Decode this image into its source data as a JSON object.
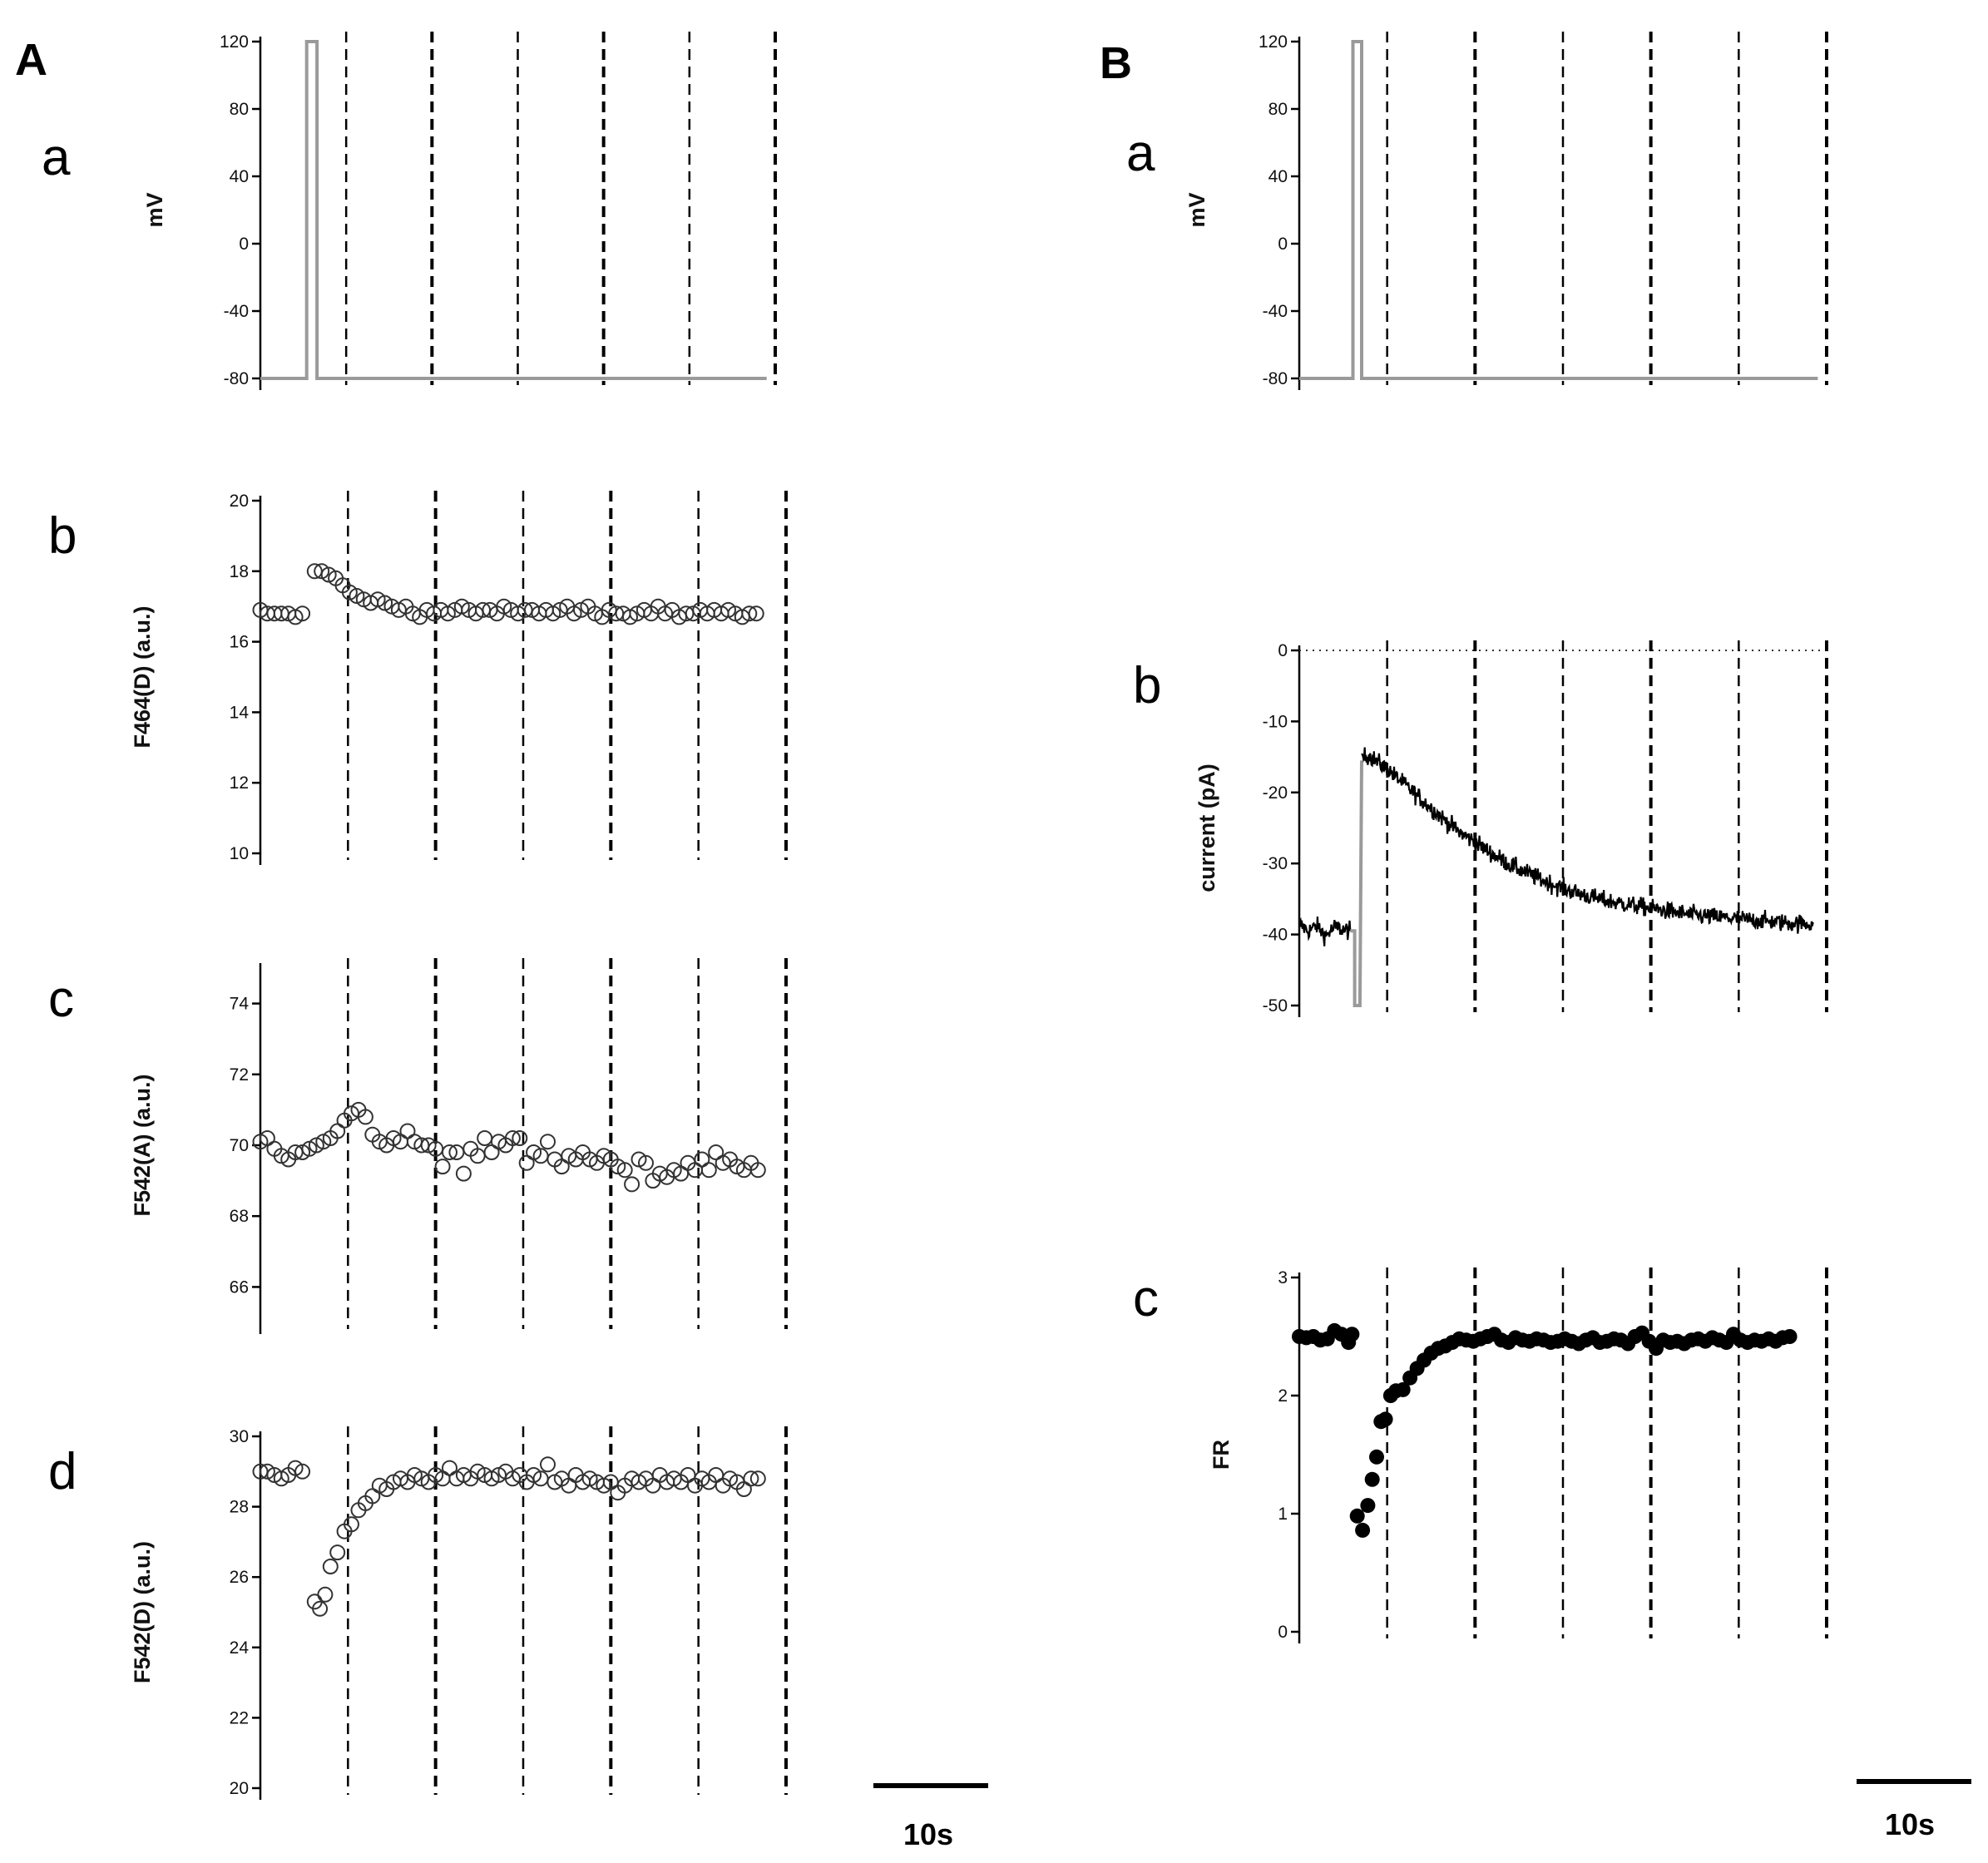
{
  "figure": {
    "panel_A": "A",
    "panel_B": "B",
    "scale_bar_label": "10s"
  },
  "chart_data": [
    {
      "id": "Aa",
      "letter": "a",
      "type": "line",
      "title": "",
      "xlabel": "",
      "ylabel": "mV",
      "xlim": [
        0,
        60
      ],
      "ylim": [
        -80,
        120
      ],
      "yticks": [
        "120",
        "80",
        "40",
        "0",
        "-40",
        "-80"
      ],
      "ytick_values": [
        120,
        80,
        40,
        0,
        -40,
        -80
      ],
      "vlines": [
        10,
        20,
        30,
        40,
        50,
        60
      ],
      "series": [
        {
          "style": "gray-line",
          "x": [
            0,
            5.4,
            5.4,
            6.6,
            6.6,
            59
          ],
          "y": [
            -80,
            -80,
            120,
            120,
            -80,
            -80
          ]
        }
      ]
    },
    {
      "id": "Ab",
      "letter": "b",
      "type": "scatter",
      "title": "",
      "xlabel": "",
      "ylabel": "F464(D) (a.u.)",
      "xlim": [
        0,
        60
      ],
      "ylim": [
        10,
        20
      ],
      "yticks": [
        "20",
        "18",
        "16",
        "14",
        "12",
        "10"
      ],
      "ytick_values": [
        20,
        18,
        16,
        14,
        12,
        10
      ],
      "vlines": [
        10,
        20,
        30,
        40,
        50,
        60
      ],
      "series": [
        {
          "style": "open-circle",
          "x": [
            0.0,
            0.8,
            1.6,
            2.4,
            3.2,
            4.0,
            4.8,
            6.2,
            7.0,
            7.8,
            8.6,
            9.4,
            10.2,
            11.0,
            11.8,
            12.6,
            13.4,
            14.2,
            15.0,
            15.8,
            16.6,
            17.4,
            18.2,
            19.0,
            19.8,
            20.6,
            21.4,
            22.2,
            23.0,
            23.8,
            24.6,
            25.4,
            26.2,
            27.0,
            27.8,
            28.6,
            29.4,
            30.2,
            31.0,
            31.8,
            32.6,
            33.4,
            34.2,
            35.0,
            35.8,
            36.6,
            37.4,
            38.2,
            39.0,
            39.8,
            40.6,
            41.4,
            42.2,
            43.0,
            43.8,
            44.6,
            45.4,
            46.2,
            47.0,
            47.8,
            48.6,
            49.4,
            50.2,
            51.0,
            51.8,
            52.6,
            53.4,
            54.2,
            55.0,
            55.8,
            56.6
          ],
          "y": [
            16.9,
            16.8,
            16.8,
            16.8,
            16.8,
            16.7,
            16.8,
            18.0,
            18.0,
            17.9,
            17.8,
            17.6,
            17.4,
            17.3,
            17.2,
            17.1,
            17.2,
            17.1,
            17.0,
            16.9,
            17.0,
            16.8,
            16.7,
            16.9,
            16.8,
            16.9,
            16.8,
            16.9,
            17.0,
            16.9,
            16.8,
            16.9,
            16.9,
            16.8,
            17.0,
            16.9,
            16.8,
            16.9,
            16.9,
            16.8,
            16.9,
            16.8,
            16.9,
            17.0,
            16.8,
            16.9,
            17.0,
            16.8,
            16.7,
            16.9,
            16.8,
            16.8,
            16.7,
            16.8,
            16.9,
            16.8,
            17.0,
            16.8,
            16.9,
            16.7,
            16.8,
            16.8,
            16.9,
            16.8,
            16.9,
            16.8,
            16.9,
            16.8,
            16.7,
            16.8,
            16.8
          ]
        }
      ]
    },
    {
      "id": "Ac",
      "letter": "c",
      "type": "scatter",
      "title": "",
      "xlabel": "",
      "ylabel": "F542(A)  (a.u.)",
      "xlim": [
        0,
        60
      ],
      "ylim": [
        65,
        75
      ],
      "yticks": [
        "74",
        "72",
        "70",
        "68",
        "66"
      ],
      "ytick_values": [
        74,
        72,
        70,
        68,
        66
      ],
      "vlines": [
        10,
        20,
        30,
        40,
        50,
        60
      ],
      "series": [
        {
          "style": "open-circle",
          "x": [
            0.0,
            0.8,
            1.6,
            2.4,
            3.2,
            4.0,
            4.8,
            5.6,
            6.4,
            7.2,
            8.0,
            8.8,
            9.6,
            10.4,
            11.2,
            12.0,
            12.8,
            13.6,
            14.4,
            15.2,
            16.0,
            16.8,
            17.6,
            18.4,
            19.2,
            20.0,
            20.8,
            21.6,
            22.4,
            23.2,
            24.0,
            24.8,
            25.6,
            26.4,
            27.2,
            28.0,
            28.8,
            29.6,
            30.4,
            31.2,
            32.0,
            32.8,
            33.6,
            34.4,
            35.2,
            36.0,
            36.8,
            37.6,
            38.4,
            39.2,
            40.0,
            40.8,
            41.6,
            42.4,
            43.2,
            44.0,
            44.8,
            45.6,
            46.4,
            47.2,
            48.0,
            48.8,
            49.6,
            50.4,
            51.2,
            52.0,
            52.8,
            53.6,
            54.4,
            55.2,
            56.0,
            56.8
          ],
          "y": [
            70.1,
            70.2,
            69.9,
            69.7,
            69.6,
            69.8,
            69.8,
            69.9,
            70.0,
            70.1,
            70.2,
            70.4,
            70.7,
            70.9,
            71.0,
            70.8,
            70.3,
            70.1,
            70.0,
            70.2,
            70.1,
            70.4,
            70.1,
            70.0,
            70.0,
            69.9,
            69.4,
            69.8,
            69.8,
            69.2,
            69.9,
            69.7,
            70.2,
            69.8,
            70.1,
            70.0,
            70.2,
            70.2,
            69.5,
            69.8,
            69.7,
            70.1,
            69.6,
            69.4,
            69.7,
            69.6,
            69.8,
            69.6,
            69.5,
            69.7,
            69.6,
            69.4,
            69.3,
            68.9,
            69.6,
            69.5,
            69.0,
            69.2,
            69.1,
            69.3,
            69.2,
            69.5,
            69.3,
            69.6,
            69.3,
            69.8,
            69.5,
            69.6,
            69.4,
            69.3,
            69.5,
            69.3
          ]
        }
      ]
    },
    {
      "id": "Ad",
      "letter": "d",
      "type": "scatter",
      "title": "",
      "xlabel": "",
      "ylabel": "F542(D)  (a.u.)",
      "xlim": [
        0,
        60
      ],
      "ylim": [
        20,
        30
      ],
      "yticks": [
        "30",
        "28",
        "26",
        "24",
        "22",
        "20"
      ],
      "ytick_values": [
        30,
        28,
        26,
        24,
        22,
        20
      ],
      "vlines": [
        10,
        20,
        30,
        40,
        50,
        60
      ],
      "series": [
        {
          "style": "open-circle",
          "x": [
            0.0,
            0.8,
            1.6,
            2.4,
            3.2,
            4.0,
            4.8,
            6.2,
            6.8,
            7.4,
            8.0,
            8.8,
            9.6,
            10.4,
            11.2,
            12.0,
            12.8,
            13.6,
            14.4,
            15.2,
            16.0,
            16.8,
            17.6,
            18.4,
            19.2,
            20.0,
            20.8,
            21.6,
            22.4,
            23.2,
            24.0,
            24.8,
            25.6,
            26.4,
            27.2,
            28.0,
            28.8,
            29.6,
            30.4,
            31.2,
            32.0,
            32.8,
            33.6,
            34.4,
            35.2,
            36.0,
            36.8,
            37.6,
            38.4,
            39.2,
            40.0,
            40.8,
            41.6,
            42.4,
            43.2,
            44.0,
            44.8,
            45.6,
            46.4,
            47.2,
            48.0,
            48.8,
            49.6,
            50.4,
            51.2,
            52.0,
            52.8,
            53.6,
            54.4,
            55.2,
            56.0,
            56.8
          ],
          "y": [
            29.0,
            29.0,
            28.9,
            28.8,
            28.9,
            29.1,
            29.0,
            25.3,
            25.1,
            25.5,
            26.3,
            26.7,
            27.3,
            27.5,
            27.9,
            28.1,
            28.3,
            28.6,
            28.5,
            28.7,
            28.8,
            28.7,
            28.9,
            28.8,
            28.7,
            28.9,
            28.8,
            29.1,
            28.8,
            28.9,
            28.8,
            29.0,
            28.9,
            28.8,
            28.9,
            29.0,
            28.8,
            28.9,
            28.7,
            28.9,
            28.8,
            29.2,
            28.7,
            28.8,
            28.6,
            28.9,
            28.7,
            28.8,
            28.7,
            28.6,
            28.7,
            28.4,
            28.6,
            28.8,
            28.7,
            28.8,
            28.6,
            28.9,
            28.7,
            28.8,
            28.7,
            28.9,
            28.6,
            28.8,
            28.7,
            28.9,
            28.6,
            28.8,
            28.7,
            28.5,
            28.8,
            28.8
          ]
        }
      ]
    },
    {
      "id": "Ba",
      "letter": "a",
      "type": "line",
      "title": "",
      "xlabel": "",
      "ylabel": "mV",
      "xlim": [
        0,
        60
      ],
      "ylim": [
        -80,
        120
      ],
      "yticks": [
        "120",
        "80",
        "40",
        "0",
        "-40",
        "-80"
      ],
      "ytick_values": [
        120,
        80,
        40,
        0,
        -40,
        -80
      ],
      "vlines": [
        10,
        20,
        30,
        40,
        50,
        60
      ],
      "series": [
        {
          "style": "gray-line",
          "x": [
            0,
            6.1,
            6.1,
            7.1,
            7.1,
            59
          ],
          "y": [
            -80,
            -80,
            120,
            120,
            -80,
            -80
          ]
        }
      ]
    },
    {
      "id": "Bb",
      "letter": "b",
      "type": "line",
      "title": "",
      "xlabel": "",
      "ylabel": "current (pA)",
      "xlim": [
        0,
        60
      ],
      "ylim": [
        -50,
        0
      ],
      "yticks": [
        "0",
        "-10",
        "-20",
        "-30",
        "-40",
        "-50"
      ],
      "ytick_values": [
        0,
        -10,
        -20,
        -30,
        -40,
        -50
      ],
      "vlines": [
        10,
        20,
        30,
        40,
        50,
        60
      ],
      "zero_line": 0,
      "noise_sd": 0.9,
      "series": [
        {
          "style": "noisy-black",
          "x": [
            0,
            1,
            2,
            3,
            4,
            5.8
          ],
          "y": [
            -38.5,
            -39.5,
            -38.8,
            -40.2,
            -39.0,
            -39.5
          ]
        },
        {
          "style": "gray-line",
          "x": [
            5.8,
            6.3,
            6.3,
            6.9,
            7.1
          ],
          "y": [
            -39.5,
            -39.5,
            -50,
            -50,
            -15.5
          ]
        },
        {
          "style": "noisy-black",
          "x": [
            7.1,
            8,
            9,
            10,
            12,
            14,
            16,
            18,
            20,
            22,
            24,
            26,
            28,
            30,
            32,
            34,
            36,
            38,
            40,
            42,
            44,
            46,
            48,
            50,
            52,
            54,
            56,
            58.5
          ],
          "y": [
            -15.0,
            -14.8,
            -15.8,
            -16.7,
            -18.9,
            -21.1,
            -23.3,
            -25.4,
            -27.0,
            -28.7,
            -30.2,
            -31.4,
            -32.5,
            -33.5,
            -34.3,
            -35.0,
            -35.5,
            -35.9,
            -36.3,
            -36.7,
            -37.1,
            -37.4,
            -37.6,
            -37.8,
            -38.0,
            -38.2,
            -38.4,
            -38.5
          ]
        }
      ]
    },
    {
      "id": "Bc",
      "letter": "c",
      "type": "scatter",
      "title": "",
      "xlabel": "",
      "ylabel": "FR",
      "xlim": [
        0,
        60
      ],
      "ylim": [
        0,
        3
      ],
      "yticks": [
        "3",
        "2",
        "1",
        "0"
      ],
      "ytick_values": [
        3,
        2,
        1,
        0
      ],
      "vlines": [
        10,
        20,
        30,
        40,
        50,
        60
      ],
      "series": [
        {
          "style": "filled-circle",
          "x": [
            0.0,
            0.8,
            1.6,
            2.4,
            3.2,
            4.0,
            4.8,
            5.6,
            6.0,
            6.6,
            7.2,
            7.8,
            8.3,
            8.8,
            9.3,
            9.8,
            10.4,
            11.0,
            11.8,
            12.6,
            13.4,
            14.2,
            15.0,
            15.8,
            16.6,
            17.4,
            18.2,
            19.0,
            19.8,
            20.6,
            21.4,
            22.2,
            23.0,
            23.8,
            24.6,
            25.4,
            26.2,
            27.0,
            27.8,
            28.6,
            29.4,
            30.2,
            31.0,
            31.8,
            32.6,
            33.4,
            34.2,
            35.0,
            35.8,
            36.6,
            37.4,
            38.2,
            39.0,
            39.8,
            40.6,
            41.4,
            42.2,
            43.0,
            43.8,
            44.6,
            45.4,
            46.2,
            47.0,
            47.8,
            48.6,
            49.4,
            50.2,
            51.0,
            51.8,
            52.6,
            53.4,
            54.2,
            55.0,
            55.8
          ],
          "y": [
            2.5,
            2.49,
            2.5,
            2.47,
            2.48,
            2.55,
            2.52,
            2.45,
            2.52,
            0.98,
            0.86,
            1.07,
            1.29,
            1.48,
            1.78,
            1.8,
            2.0,
            2.04,
            2.05,
            2.15,
            2.23,
            2.3,
            2.36,
            2.4,
            2.42,
            2.45,
            2.48,
            2.47,
            2.46,
            2.48,
            2.5,
            2.52,
            2.47,
            2.45,
            2.49,
            2.47,
            2.46,
            2.48,
            2.47,
            2.45,
            2.46,
            2.48,
            2.46,
            2.44,
            2.47,
            2.49,
            2.45,
            2.46,
            2.48,
            2.47,
            2.44,
            2.5,
            2.53,
            2.46,
            2.4,
            2.47,
            2.45,
            2.46,
            2.44,
            2.47,
            2.48,
            2.46,
            2.49,
            2.47,
            2.45,
            2.52,
            2.47,
            2.45,
            2.47,
            2.46,
            2.48,
            2.46,
            2.49,
            2.5
          ]
        }
      ]
    }
  ]
}
